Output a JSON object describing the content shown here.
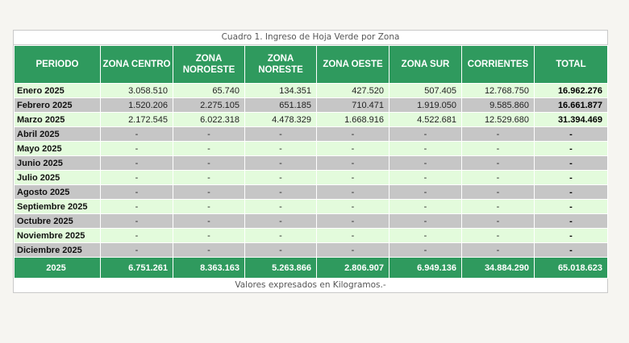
{
  "caption": "Cuadro 1. Ingreso de Hoja Verde por Zona",
  "headers": [
    "PERIODO",
    "ZONA CENTRO",
    "ZONA NOROESTE",
    "ZONA NORESTE",
    "ZONA OESTE",
    "ZONA SUR",
    "CORRIENTES",
    "TOTAL"
  ],
  "rows": [
    [
      "Enero 2025",
      "3.058.510",
      "65.740",
      "134.351",
      "427.520",
      "507.405",
      "12.768.750",
      "16.962.276"
    ],
    [
      "Febrero 2025",
      "1.520.206",
      "2.275.105",
      "651.185",
      "710.471",
      "1.919.050",
      "9.585.860",
      "16.661.877"
    ],
    [
      "Marzo 2025",
      "2.172.545",
      "6.022.318",
      "4.478.329",
      "1.668.916",
      "4.522.681",
      "12.529.680",
      "31.394.469"
    ],
    [
      "Abril 2025",
      "-",
      "-",
      "-",
      "-",
      "-",
      "-",
      "-"
    ],
    [
      "Mayo 2025",
      "-",
      "-",
      "-",
      "-",
      "-",
      "-",
      "-"
    ],
    [
      "Junio 2025",
      "-",
      "-",
      "-",
      "-",
      "-",
      "-",
      "-"
    ],
    [
      "Julio 2025",
      "-",
      "-",
      "-",
      "-",
      "-",
      "-",
      "-"
    ],
    [
      "Agosto 2025",
      "-",
      "-",
      "-",
      "-",
      "-",
      "-",
      "-"
    ],
    [
      "Septiembre 2025",
      "-",
      "-",
      "-",
      "-",
      "-",
      "-",
      "-"
    ],
    [
      "Octubre 2025",
      "-",
      "-",
      "-",
      "-",
      "-",
      "-",
      "-"
    ],
    [
      "Noviembre 2025",
      "-",
      "-",
      "-",
      "-",
      "-",
      "-",
      "-"
    ],
    [
      "Diciembre 2025",
      "-",
      "-",
      "-",
      "-",
      "-",
      "-",
      "-"
    ]
  ],
  "total": [
    "2025",
    "6.751.261",
    "8.363.163",
    "5.263.866",
    "2.806.907",
    "6.949.136",
    "34.884.290",
    "65.018.623"
  ],
  "footer": "Valores expresados en Kilogramos.-",
  "colors": {
    "header": "#2f9a5e",
    "row_green": "#e3fbdc",
    "row_gray": "#c6c6c6"
  }
}
